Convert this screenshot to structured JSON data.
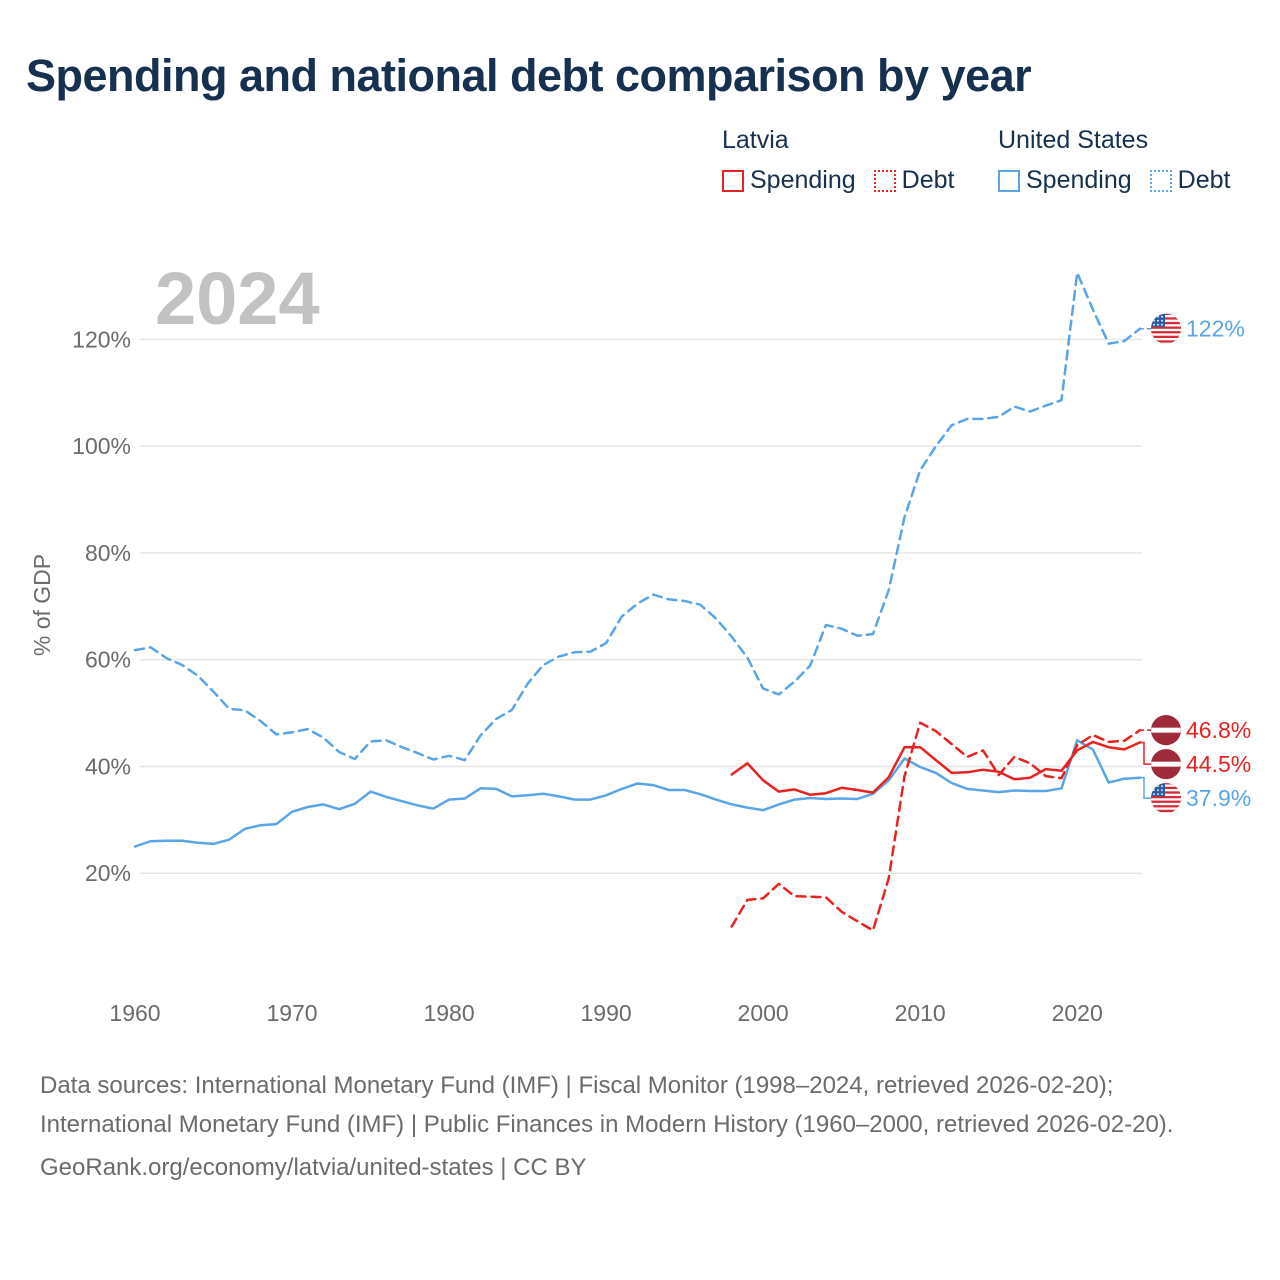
{
  "title": "Spending and national debt comparison by year",
  "legend": {
    "groups": [
      {
        "name": "Latvia",
        "items": [
          {
            "label": "Spending",
            "color": "#e8231f",
            "style": "solid"
          },
          {
            "label": "Debt",
            "color": "#e8231f",
            "style": "dotted"
          }
        ]
      },
      {
        "name": "United States",
        "items": [
          {
            "label": "Spending",
            "color": "#5aa5e8",
            "style": "solid"
          },
          {
            "label": "Debt",
            "color": "#5aa5e8",
            "style": "dotted"
          }
        ]
      }
    ]
  },
  "chart_data": {
    "type": "line",
    "year_label": "2024",
    "ylabel": "% of GDP",
    "xlim": [
      1960,
      2024
    ],
    "ylim": [
      0,
      130
    ],
    "x_ticks": [
      "1960",
      "1970",
      "1980",
      "1990",
      "2000",
      "2010",
      "2020"
    ],
    "y_ticks": [
      "20%",
      "40%",
      "60%",
      "80%",
      "100%",
      "120%"
    ],
    "series": [
      {
        "name": "United States Debt",
        "country": "United States",
        "metric": "Debt",
        "color": "#5aa5e8",
        "dash": true,
        "end_label": "122%",
        "x": [
          1960,
          1961,
          1962,
          1963,
          1964,
          1965,
          1966,
          1967,
          1968,
          1969,
          1970,
          1971,
          1972,
          1973,
          1974,
          1975,
          1976,
          1977,
          1978,
          1979,
          1980,
          1981,
          1982,
          1983,
          1984,
          1985,
          1986,
          1987,
          1988,
          1989,
          1990,
          1991,
          1992,
          1993,
          1994,
          1995,
          1996,
          1997,
          1998,
          1999,
          2000,
          2001,
          2002,
          2003,
          2004,
          2005,
          2006,
          2007,
          2008,
          2009,
          2010,
          2011,
          2012,
          2013,
          2014,
          2015,
          2016,
          2017,
          2018,
          2019,
          2020,
          2021,
          2022,
          2023,
          2024
        ],
        "values": [
          61.8,
          62.3,
          60.3,
          59.0,
          57.0,
          54.0,
          50.8,
          50.5,
          48.5,
          46.0,
          46.4,
          47.0,
          45.4,
          42.7,
          41.4,
          44.7,
          44.9,
          43.6,
          42.5,
          41.3,
          42.0,
          41.2,
          45.8,
          48.9,
          50.6,
          55.5,
          59.0,
          60.6,
          61.4,
          61.5,
          63.1,
          68.1,
          70.5,
          72.2,
          71.3,
          71.0,
          70.3,
          67.7,
          64.3,
          60.4,
          54.6,
          53.5,
          55.9,
          58.9,
          66.5,
          65.8,
          64.5,
          64.8,
          73.1,
          86.7,
          95.5,
          100.0,
          103.9,
          105.1,
          105.1,
          105.5,
          107.4,
          106.5,
          107.6,
          108.6,
          132.5,
          125.6,
          119.2,
          119.7,
          122.0
        ]
      },
      {
        "name": "United States Spending",
        "country": "United States",
        "metric": "Spending",
        "color": "#5aa5e8",
        "dash": false,
        "end_label": "37.9%",
        "x": [
          1960,
          1961,
          1962,
          1963,
          1964,
          1965,
          1966,
          1967,
          1968,
          1969,
          1970,
          1971,
          1972,
          1973,
          1974,
          1975,
          1976,
          1977,
          1978,
          1979,
          1980,
          1981,
          1982,
          1983,
          1984,
          1985,
          1986,
          1987,
          1988,
          1989,
          1990,
          1991,
          1992,
          1993,
          1994,
          1995,
          1996,
          1997,
          1998,
          1999,
          2000,
          2001,
          2002,
          2003,
          2004,
          2005,
          2006,
          2007,
          2008,
          2009,
          2010,
          2011,
          2012,
          2013,
          2014,
          2015,
          2016,
          2017,
          2018,
          2019,
          2020,
          2021,
          2022,
          2023,
          2024
        ],
        "values": [
          25.0,
          26.0,
          26.1,
          26.1,
          25.7,
          25.5,
          26.3,
          28.3,
          29.0,
          29.2,
          31.5,
          32.4,
          32.9,
          32.0,
          33.0,
          35.3,
          34.3,
          33.5,
          32.7,
          32.1,
          33.8,
          34.0,
          35.9,
          35.8,
          34.4,
          34.6,
          34.9,
          34.4,
          33.8,
          33.8,
          34.6,
          35.8,
          36.8,
          36.5,
          35.6,
          35.6,
          34.8,
          33.8,
          32.9,
          32.3,
          31.8,
          32.9,
          33.8,
          34.1,
          33.9,
          34.0,
          33.9,
          34.9,
          37.4,
          41.5,
          39.9,
          38.8,
          36.9,
          35.8,
          35.5,
          35.2,
          35.5,
          35.4,
          35.4,
          35.9,
          44.9,
          43.2,
          37.0,
          37.7,
          37.9
        ]
      },
      {
        "name": "Latvia Debt",
        "country": "Latvia",
        "metric": "Debt",
        "color": "#e8231f",
        "dash": true,
        "end_label": "46.8%",
        "x": [
          1998,
          1999,
          2000,
          2001,
          2002,
          2003,
          2004,
          2005,
          2006,
          2007,
          2008,
          2009,
          2010,
          2011,
          2012,
          2013,
          2014,
          2015,
          2016,
          2017,
          2018,
          2019,
          2020,
          2021,
          2022,
          2023,
          2024
        ],
        "values": [
          10.0,
          15.0,
          15.3,
          18.0,
          15.7,
          15.6,
          15.5,
          12.8,
          11.0,
          9.3,
          19.1,
          38.2,
          48.2,
          46.6,
          44.2,
          41.8,
          43.0,
          38.4,
          41.8,
          40.6,
          38.2,
          37.8,
          44.0,
          45.9,
          44.6,
          44.8,
          46.8
        ]
      },
      {
        "name": "Latvia Spending",
        "country": "Latvia",
        "metric": "Spending",
        "color": "#e8231f",
        "dash": false,
        "end_label": "44.5%",
        "x": [
          1998,
          1999,
          2000,
          2001,
          2002,
          2003,
          2004,
          2005,
          2006,
          2007,
          2008,
          2009,
          2010,
          2011,
          2012,
          2013,
          2014,
          2015,
          2016,
          2017,
          2018,
          2019,
          2020,
          2021,
          2022,
          2023,
          2024
        ],
        "values": [
          38.5,
          40.6,
          37.4,
          35.3,
          35.7,
          34.7,
          35.0,
          36.0,
          35.6,
          35.1,
          38.0,
          43.6,
          43.6,
          41.2,
          38.8,
          38.9,
          39.4,
          39.0,
          37.6,
          37.9,
          39.5,
          39.2,
          43.0,
          44.6,
          43.6,
          43.2,
          44.5
        ]
      }
    ]
  },
  "footer": {
    "sources": "Data sources: International Monetary Fund (IMF) | Fiscal Monitor (1998–2024, retrieved 2026-02-20); International Monetary Fund (IMF) | Public Finances in Modern History (1960–2000, retrieved 2026-02-20).",
    "credit": "GeoRank.org/economy/latvia/united-states | CC BY"
  },
  "flags": {
    "Latvia": {
      "icon": "latvia-flag-icon",
      "carmine": "#9e2a3a",
      "white": "#ffffff"
    },
    "United States": {
      "icon": "us-flag-icon",
      "red": "#d62b35",
      "white": "#ffffff",
      "blue": "#2b5ea8"
    }
  }
}
